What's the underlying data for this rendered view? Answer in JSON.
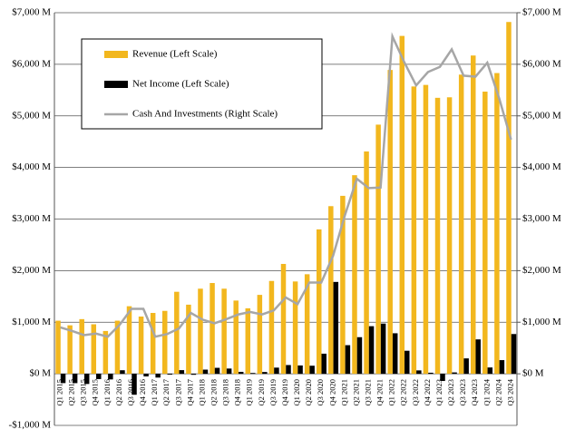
{
  "chart_data": {
    "type": "bar_line",
    "categories": [
      "Q1 2015",
      "Q2 2015",
      "Q3 2015",
      "Q4 2015",
      "Q1 2016",
      "Q2 2016",
      "Q3 2016",
      "Q4 2016",
      "Q1 2017",
      "Q2 2017",
      "Q3 2017",
      "Q4 2017",
      "Q1 2018",
      "Q2 2018",
      "Q3 2018",
      "Q4 2018",
      "Q1 2019",
      "Q2 2019",
      "Q3 2019",
      "Q4 2019",
      "Q1 2020",
      "Q2 2020",
      "Q3 2020",
      "Q4 2020",
      "Q1 2021",
      "Q2 2021",
      "Q3 2021",
      "Q4 2021",
      "Q1 2022",
      "Q2 2022",
      "Q3 2022",
      "Q4 2022",
      "Q1 2023",
      "Q2 2023",
      "Q3 2023",
      "Q4 2023",
      "Q1 2024",
      "Q2 2024",
      "Q3 2024"
    ],
    "series": [
      {
        "name": "Revenue (Left Scale)",
        "color": "#f2b71e",
        "kind": "bar",
        "values": [
          1030,
          940,
          1060,
          960,
          830,
          1030,
          1310,
          1110,
          1180,
          1220,
          1590,
          1340,
          1650,
          1760,
          1650,
          1420,
          1270,
          1530,
          1800,
          2130,
          1790,
          1930,
          2800,
          3250,
          3450,
          3850,
          4310,
          4830,
          5890,
          6550,
          5570,
          5600,
          5350,
          5360,
          5800,
          6170,
          5470,
          5830,
          6820
        ]
      },
      {
        "name": "Net Income (Left Scale)",
        "color": "#000000",
        "kind": "bar",
        "values": [
          -180,
          -181,
          -197,
          -102,
          -109,
          69,
          -406,
          -51,
          -73,
          -16,
          71,
          -19,
          81,
          116,
          102,
          38,
          16,
          35,
          120,
          170,
          162,
          157,
          390,
          1781,
          555,
          710,
          923,
          974,
          786,
          447,
          66,
          21,
          -139,
          27,
          299,
          667,
          123,
          265,
          771
        ]
      },
      {
        "name": "Cash And Investments (Right Scale)",
        "color": "#a6a6a6",
        "kind": "line",
        "axis": "y2",
        "values": [
          900,
          830,
          750,
          780,
          720,
          950,
          1260,
          1260,
          720,
          770,
          880,
          1180,
          1050,
          980,
          1060,
          1150,
          1200,
          1150,
          1230,
          1480,
          1350,
          1770,
          1770,
          2290,
          3080,
          3780,
          3600,
          3610,
          6540,
          6040,
          5590,
          5850,
          5950,
          6290,
          5780,
          5760,
          6030,
          5340,
          4540
        ]
      }
    ],
    "ylim": [
      -1000,
      7000
    ],
    "yticks": [
      {
        "value": -1000,
        "label": "-$1,000 M"
      },
      {
        "value": 0,
        "label": "$0 M"
      },
      {
        "value": 1000,
        "label": "$1,000 M"
      },
      {
        "value": 2000,
        "label": "$2,000 M"
      },
      {
        "value": 3000,
        "label": "$3,000 M"
      },
      {
        "value": 4000,
        "label": "$4,000 M"
      },
      {
        "value": 5000,
        "label": "$5,000 M"
      },
      {
        "value": 6000,
        "label": "$6,000 M"
      },
      {
        "value": 7000,
        "label": "$7,000 M"
      }
    ],
    "y2lim": [
      -1000,
      7000
    ],
    "y2ticks": [
      {
        "value": 0,
        "label": "$0 M"
      },
      {
        "value": 1000,
        "label": "$1,000 M"
      },
      {
        "value": 2000,
        "label": "$2,000 M"
      },
      {
        "value": 3000,
        "label": "$3,000 M"
      },
      {
        "value": 4000,
        "label": "$4,000 M"
      },
      {
        "value": 5000,
        "label": "$5,000 M"
      },
      {
        "value": 6000,
        "label": "$6,000 M"
      },
      {
        "value": 7000,
        "label": "$7,000 M"
      }
    ],
    "grid": true
  }
}
